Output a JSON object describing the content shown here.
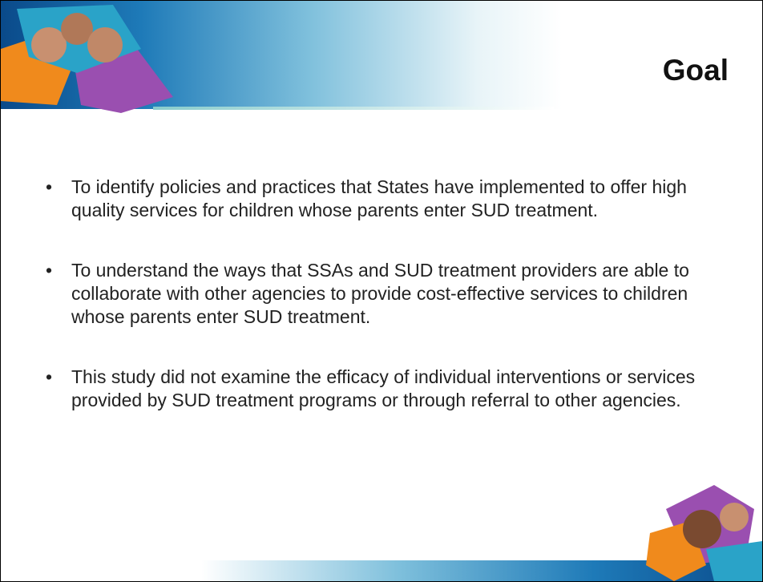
{
  "header": {
    "title": "Goal"
  },
  "bullets": [
    "To identify policies and practices that States have implemented to offer high quality services for children whose parents enter SUD treatment.",
    "To understand the ways that SSAs and SUD treatment providers are able to collaborate with other agencies to provide cost-effective services to children whose parents enter SUD treatment.",
    "This study did not examine the efficacy of individual interventions or services provided by SUD treatment programs or through referral to other agencies."
  ]
}
